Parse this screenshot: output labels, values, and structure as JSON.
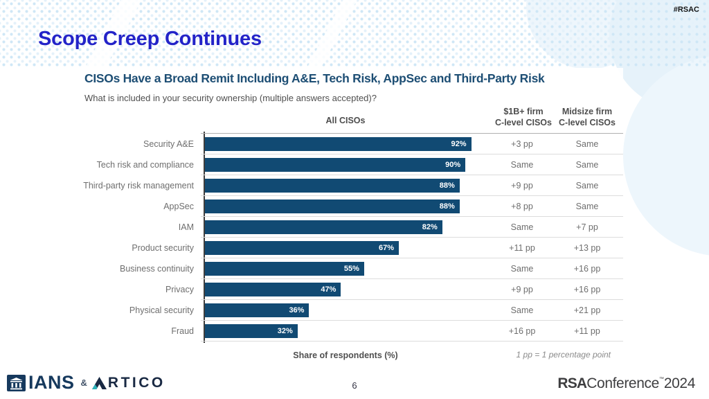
{
  "slide": {
    "hashtag": "#RSAC",
    "title": "Scope Creep Continues",
    "page_number": "6"
  },
  "chart": {
    "col_all": "All CISOs",
    "col_b1_line1": "$1B+ firm",
    "col_b1_line2": "C-level CISOs",
    "col_mid_line1": "Midsize firm",
    "col_mid_line2": "C-level CISOs"
  },
  "chart_data": {
    "type": "bar",
    "orientation": "horizontal",
    "title": "CISOs Have a Broad Remit Including A&E, Tech Risk, AppSec and Third-Party Risk",
    "subtitle": "What is included in your security ownership (multiple answers accepted)?",
    "xlabel": "Share of respondents (%)",
    "xlim": [
      0,
      100
    ],
    "grid": false,
    "bar_color": "#114a73",
    "categories": [
      "Security A&E",
      "Tech risk and compliance",
      "Third-party risk management",
      "AppSec",
      "IAM",
      "Product security",
      "Business continuity",
      "Privacy",
      "Physical security",
      "Fraud"
    ],
    "values": [
      92,
      90,
      88,
      88,
      82,
      67,
      55,
      47,
      36,
      32
    ],
    "value_labels": [
      "92%",
      "90%",
      "88%",
      "88%",
      "82%",
      "67%",
      "55%",
      "47%",
      "36%",
      "32%"
    ],
    "columns": [
      {
        "header": "All CISOs",
        "type": "bars"
      },
      {
        "header": "$1B+ firm C-level CISOs",
        "values": [
          "+3 pp",
          "Same",
          "+9 pp",
          "+8 pp",
          "Same",
          "+11 pp",
          "Same",
          "+9 pp",
          "Same",
          "+16 pp"
        ]
      },
      {
        "header": "Midsize firm C-level CISOs",
        "values": [
          "Same",
          "Same",
          "Same",
          "Same",
          "+7 pp",
          "+13 pp",
          "+16 pp",
          "+16 pp",
          "+21 pp",
          "+11 pp"
        ]
      }
    ],
    "footnote": "1 pp = 1 percentage point"
  },
  "footer": {
    "ians_label": "IANS",
    "ampersand": "&",
    "artico_rest": "RTICO",
    "rsa": "RSA",
    "conference": "Conference",
    "trademark": "™",
    "year": "2024"
  }
}
